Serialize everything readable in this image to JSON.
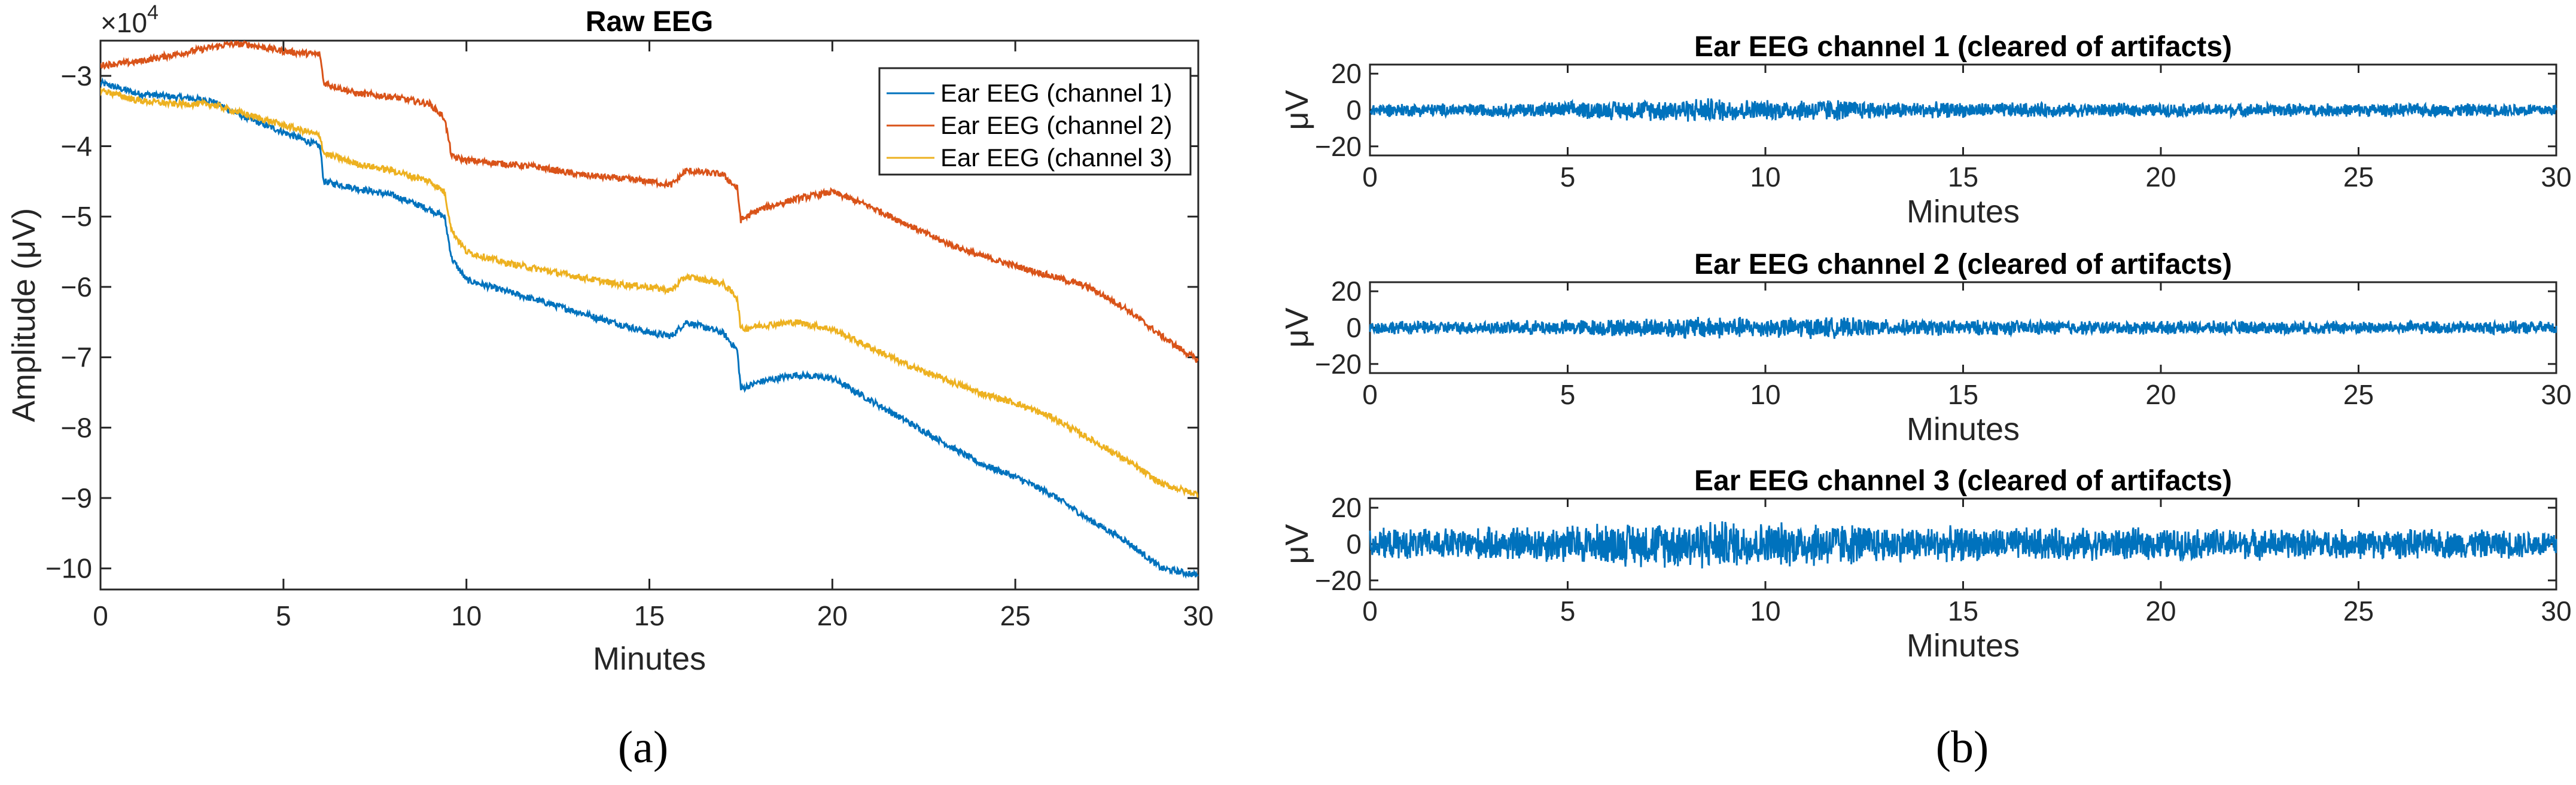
{
  "colors": {
    "channel1": "#0072BD",
    "channel2": "#D95319",
    "channel3": "#EDB120",
    "axis": "#262626"
  },
  "chart_data": [
    {
      "type": "line",
      "title": "Raw EEG",
      "xlabel": "Minutes",
      "ylabel": "Amplitude (μV)",
      "xlim": [
        0,
        30
      ],
      "ylim": [
        -10.3,
        -2.5
      ],
      "y_multiplier_label": "×10",
      "y_multiplier_exponent": "4",
      "x_ticks": [
        0,
        5,
        10,
        15,
        20,
        25,
        30
      ],
      "y_ticks": [
        -3,
        -4,
        -5,
        -6,
        -7,
        -8,
        -9,
        -10
      ],
      "legend_position": "top-right",
      "panel_label": "(a)",
      "series": [
        {
          "name": "Ear EEG (channel 1)",
          "x": [
            0,
            1,
            2,
            3,
            4,
            5,
            6,
            6.1,
            7,
            8,
            9,
            9.4,
            9.6,
            10,
            11,
            12,
            13,
            14,
            15,
            15.6,
            16,
            17,
            17.4,
            17.5,
            18,
            19,
            20,
            21,
            22,
            23,
            24,
            25,
            26,
            27,
            28,
            29,
            30
          ],
          "values": [
            -3.1,
            -3.25,
            -3.3,
            -3.35,
            -3.6,
            -3.8,
            -4.0,
            -4.5,
            -4.6,
            -4.7,
            -4.9,
            -5.0,
            -5.6,
            -5.9,
            -6.05,
            -6.2,
            -6.35,
            -6.5,
            -6.65,
            -6.7,
            -6.5,
            -6.65,
            -6.9,
            -7.45,
            -7.35,
            -7.25,
            -7.3,
            -7.6,
            -7.9,
            -8.2,
            -8.5,
            -8.7,
            -8.95,
            -9.3,
            -9.6,
            -10.0,
            -10.1
          ]
        },
        {
          "name": "Ear EEG (channel 2)",
          "x": [
            0,
            1,
            2,
            3,
            3.5,
            4,
            5,
            6,
            6.1,
            7,
            8,
            9,
            9.4,
            9.6,
            10,
            11,
            12,
            13,
            14,
            15,
            15.6,
            16,
            17,
            17.4,
            17.5,
            18,
            19,
            20,
            21,
            22,
            23,
            24,
            25,
            26,
            27,
            28,
            29,
            30
          ],
          "values": [
            -2.85,
            -2.8,
            -2.7,
            -2.6,
            -2.55,
            -2.55,
            -2.65,
            -2.7,
            -3.1,
            -3.25,
            -3.3,
            -3.4,
            -3.6,
            -4.15,
            -4.2,
            -4.25,
            -4.3,
            -4.4,
            -4.45,
            -4.5,
            -4.55,
            -4.35,
            -4.4,
            -4.6,
            -5.05,
            -4.9,
            -4.75,
            -4.65,
            -4.85,
            -5.1,
            -5.35,
            -5.55,
            -5.7,
            -5.85,
            -6.0,
            -6.3,
            -6.7,
            -7.05
          ]
        },
        {
          "name": "Ear EEG (channel 3)",
          "x": [
            0,
            1,
            2,
            3,
            4,
            5,
            6,
            6.1,
            7,
            8,
            9,
            9.4,
            9.6,
            10,
            11,
            12,
            13,
            14,
            15,
            15.6,
            16,
            17,
            17.4,
            17.5,
            18,
            19,
            20,
            21,
            22,
            23,
            24,
            25,
            26,
            27,
            28,
            29,
            30
          ],
          "values": [
            -3.2,
            -3.35,
            -3.4,
            -3.4,
            -3.55,
            -3.7,
            -3.85,
            -4.1,
            -4.25,
            -4.35,
            -4.5,
            -4.65,
            -5.2,
            -5.5,
            -5.65,
            -5.75,
            -5.85,
            -5.95,
            -6.0,
            -6.05,
            -5.85,
            -5.95,
            -6.15,
            -6.6,
            -6.55,
            -6.5,
            -6.6,
            -6.85,
            -7.1,
            -7.3,
            -7.5,
            -7.65,
            -7.85,
            -8.15,
            -8.45,
            -8.8,
            -8.95
          ]
        }
      ]
    },
    {
      "type": "line",
      "title": "Ear EEG channel 1 (cleared of artifacts)",
      "xlabel": "Minutes",
      "ylabel": "μV",
      "xlim": [
        0,
        30
      ],
      "ylim": [
        -25,
        25
      ],
      "x_ticks": [
        0,
        5,
        10,
        15,
        20,
        25,
        30
      ],
      "y_ticks": [
        20,
        0,
        -20
      ],
      "noise_amplitude": [
        [
          0,
          4
        ],
        [
          3,
          4
        ],
        [
          6.5,
          6
        ],
        [
          8.5,
          7.5
        ],
        [
          10,
          6
        ],
        [
          11.5,
          7
        ],
        [
          13,
          5
        ],
        [
          16,
          4.5
        ],
        [
          20,
          4
        ],
        [
          25,
          4
        ],
        [
          30,
          4
        ]
      ]
    },
    {
      "type": "line",
      "title": "Ear EEG channel 2  (cleared of artifacts)",
      "xlabel": "Minutes",
      "ylabel": "μV",
      "xlim": [
        0,
        30
      ],
      "ylim": [
        -25,
        25
      ],
      "x_ticks": [
        0,
        5,
        10,
        15,
        20,
        25,
        30
      ],
      "y_ticks": [
        20,
        0,
        -20
      ],
      "noise_amplitude": [
        [
          0,
          4
        ],
        [
          3,
          4
        ],
        [
          6.5,
          5.5
        ],
        [
          8.5,
          7
        ],
        [
          10,
          6
        ],
        [
          11.5,
          6.5
        ],
        [
          13,
          5
        ],
        [
          16,
          4.5
        ],
        [
          20,
          4
        ],
        [
          25,
          4
        ],
        [
          30,
          4
        ]
      ]
    },
    {
      "type": "line",
      "title": "Ear EEG channel 3 (cleared of artifacts)",
      "xlabel": "Minutes",
      "ylabel": "μV",
      "xlim": [
        0,
        30
      ],
      "ylim": [
        -25,
        25
      ],
      "x_ticks": [
        0,
        5,
        10,
        15,
        20,
        25,
        30
      ],
      "y_ticks": [
        20,
        0,
        -20
      ],
      "panel_label": "(b)",
      "noise_amplitude": [
        [
          0,
          9
        ],
        [
          3,
          10
        ],
        [
          6.5,
          13
        ],
        [
          8.5,
          15
        ],
        [
          10,
          13
        ],
        [
          11.5,
          14
        ],
        [
          13,
          11
        ],
        [
          16,
          10
        ],
        [
          20,
          9.5
        ],
        [
          25,
          9
        ],
        [
          30,
          8.5
        ]
      ]
    }
  ]
}
